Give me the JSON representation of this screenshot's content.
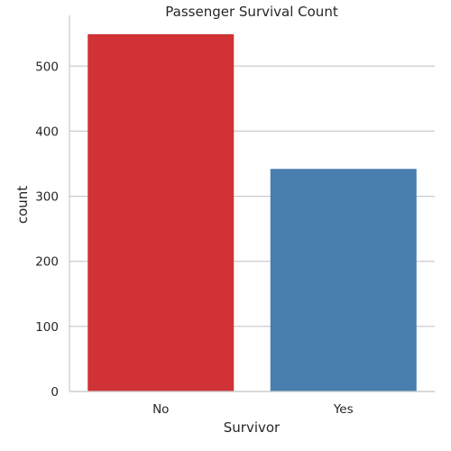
{
  "chart_data": {
    "type": "bar",
    "title": "Passenger Survival Count",
    "xlabel": "Survivor",
    "ylabel": "count",
    "categories": [
      "No",
      "Yes"
    ],
    "values": [
      549,
      342
    ],
    "colors": [
      "#d03235",
      "#477eae"
    ],
    "ylim": [
      0,
      578
    ],
    "yticks": [
      0,
      100,
      200,
      300,
      400,
      500
    ],
    "grid": "horizontal",
    "legend": "none"
  }
}
